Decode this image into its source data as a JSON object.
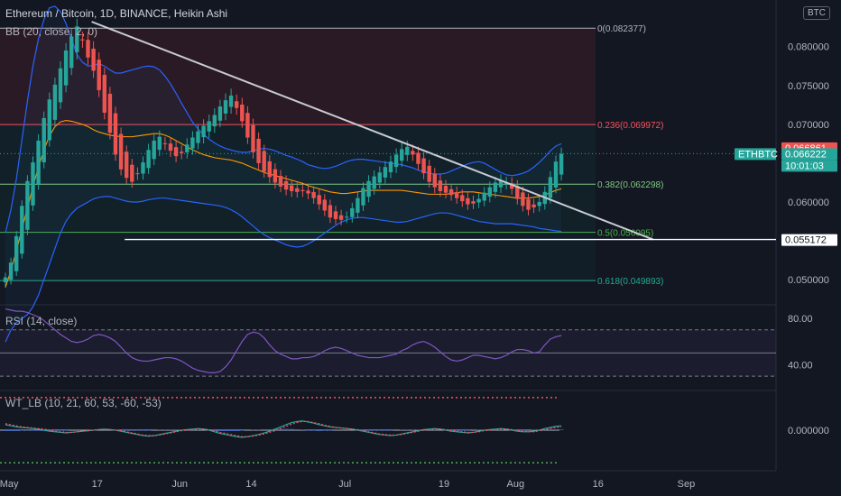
{
  "header": {
    "title": "Ethereum / Bitcoin, 1D, BINANCE, Heikin Ashi",
    "bb_label": "BB (20, close, 2, 0)",
    "rsi_label": "RSI (14, close)",
    "wt_label": "WT_LB (10, 21, 60, 53, -60, -53)",
    "currency": "BTC"
  },
  "colors": {
    "background": "#131722",
    "up": "#26a69a",
    "down": "#ef5350",
    "bb": "#2962ff",
    "basis": "#ff9800",
    "rsi": "#7e57c2",
    "trendline": "#c9cbd1",
    "fib_red": "#f7525f",
    "fib_green": "#4caf50",
    "fib_teal": "#22ab94"
  },
  "chart_data": {
    "type": "candlestick",
    "symbol": "ETHBTC",
    "ylim": [
      0.047,
      0.086
    ],
    "y_ticks": [
      "0.080000",
      "0.075000",
      "0.070000",
      "0.060000",
      "0.050000"
    ],
    "x_ticks": [
      "May",
      "17",
      "Jun",
      "14",
      "Jul",
      "19",
      "Aug",
      "16",
      "Sep"
    ],
    "x_tick_dates": [
      "2021-05-01",
      "2021-05-17",
      "2021-06-01",
      "2021-06-14",
      "2021-07-01",
      "2021-07-19",
      "2021-08-01",
      "2021-08-16",
      "2021-09-01"
    ],
    "closes": [
      0.0503,
      0.0522,
      0.0556,
      0.0595,
      0.0627,
      0.0651,
      0.0679,
      0.0708,
      0.0732,
      0.0751,
      0.0772,
      0.0795,
      0.0813,
      0.0826,
      0.0808,
      0.0786,
      0.0769,
      0.0744,
      0.0715,
      0.0689,
      0.0661,
      0.0642,
      0.0631,
      0.0626,
      0.0636,
      0.0651,
      0.0667,
      0.0679,
      0.0684,
      0.0675,
      0.0666,
      0.0659,
      0.0663,
      0.0674,
      0.0683,
      0.0691,
      0.0698,
      0.0704,
      0.0712,
      0.0723,
      0.0731,
      0.0737,
      0.0721,
      0.0704,
      0.0683,
      0.0664,
      0.065,
      0.0639,
      0.0632,
      0.0625,
      0.062,
      0.0616,
      0.0614,
      0.0613,
      0.0614,
      0.0611,
      0.0605,
      0.0597,
      0.0589,
      0.058,
      0.0578,
      0.0577,
      0.0581,
      0.0592,
      0.0605,
      0.0618,
      0.0627,
      0.0633,
      0.0638,
      0.0645,
      0.0652,
      0.0661,
      0.0668,
      0.0671,
      0.0661,
      0.0649,
      0.0637,
      0.0626,
      0.0619,
      0.0614,
      0.0612,
      0.0609,
      0.0605,
      0.0601,
      0.0597,
      0.0598,
      0.0604,
      0.0612,
      0.0619,
      0.0625,
      0.0628,
      0.0625,
      0.0617,
      0.0604,
      0.0595,
      0.059,
      0.0593,
      0.06,
      0.0613,
      0.0632,
      0.0652,
      0.0662
    ],
    "bb_upper": [
      0.056,
      0.059,
      0.063,
      0.068,
      0.073,
      0.0775,
      0.081,
      0.0835,
      0.085,
      0.0852,
      0.0845,
      0.083,
      0.081,
      0.079,
      0.078,
      0.0775,
      0.0776,
      0.0778,
      0.0775,
      0.077,
      0.0766,
      0.0766,
      0.0768,
      0.077,
      0.0772,
      0.0774,
      0.0775,
      0.0774,
      0.077,
      0.0762,
      0.0752,
      0.074,
      0.0727,
      0.0715,
      0.0703,
      0.0694,
      0.0687,
      0.0681,
      0.0676,
      0.0672,
      0.0669,
      0.0667,
      0.0665,
      0.0664,
      0.0664,
      0.0666,
      0.0668,
      0.0669,
      0.0668,
      0.0666,
      0.0663,
      0.066,
      0.0658,
      0.0655,
      0.0652,
      0.0648,
      0.0646,
      0.0644,
      0.0643,
      0.0644,
      0.0646,
      0.0649,
      0.0652,
      0.0654,
      0.0655,
      0.0655,
      0.0654,
      0.0653,
      0.0652,
      0.0651,
      0.065,
      0.0649,
      0.0648,
      0.0646,
      0.0644,
      0.0641,
      0.0639,
      0.0637,
      0.0636,
      0.0636,
      0.0637,
      0.064,
      0.0643,
      0.0646,
      0.0649,
      0.0651,
      0.0652,
      0.065,
      0.0646,
      0.0642,
      0.0638,
      0.0635,
      0.0634,
      0.0635,
      0.0637,
      0.064,
      0.0645,
      0.0651,
      0.0658,
      0.0666,
      0.0672,
      0.0675
    ],
    "bb_lower": [
      0.042,
      0.0435,
      0.0445,
      0.045,
      0.0455,
      0.0465,
      0.048,
      0.05,
      0.052,
      0.054,
      0.056,
      0.0575,
      0.0585,
      0.0592,
      0.0596,
      0.06,
      0.0604,
      0.0606,
      0.0607,
      0.0607,
      0.0605,
      0.0603,
      0.0601,
      0.06,
      0.06,
      0.0601,
      0.0603,
      0.0604,
      0.0605,
      0.0605,
      0.0604,
      0.0603,
      0.0602,
      0.0601,
      0.06,
      0.0599,
      0.0598,
      0.0597,
      0.0596,
      0.0595,
      0.0593,
      0.059,
      0.0586,
      0.0581,
      0.0575,
      0.0569,
      0.0563,
      0.0558,
      0.0554,
      0.0551,
      0.0548,
      0.0545,
      0.0543,
      0.0542,
      0.0543,
      0.0546,
      0.055,
      0.0555,
      0.056,
      0.0565,
      0.057,
      0.0574,
      0.0577,
      0.0579,
      0.058,
      0.058,
      0.0579,
      0.0578,
      0.0577,
      0.0576,
      0.0575,
      0.0574,
      0.0574,
      0.0575,
      0.0577,
      0.0579,
      0.0581,
      0.0583,
      0.0585,
      0.0586,
      0.0586,
      0.0585,
      0.0583,
      0.0581,
      0.0579,
      0.0577,
      0.0575,
      0.0574,
      0.0573,
      0.0572,
      0.0572,
      0.0572,
      0.0572,
      0.0571,
      0.057,
      0.0569,
      0.0568,
      0.0566,
      0.0565,
      0.0564,
      0.0563,
      0.0562
    ],
    "bb_basis": [
      0.049,
      0.0512,
      0.0537,
      0.0565,
      0.0592,
      0.062,
      0.0645,
      0.0667,
      0.0685,
      0.0697,
      0.0703,
      0.0705,
      0.0704,
      0.0702,
      0.07,
      0.0697,
      0.0693,
      0.069,
      0.0688,
      0.0686,
      0.0685,
      0.0684,
      0.0684,
      0.0684,
      0.0685,
      0.0686,
      0.0687,
      0.0688,
      0.0688,
      0.0686,
      0.0683,
      0.0679,
      0.0675,
      0.0671,
      0.0667,
      0.0664,
      0.0661,
      0.0659,
      0.0657,
      0.0656,
      0.0655,
      0.0654,
      0.0652,
      0.065,
      0.0647,
      0.0644,
      0.0641,
      0.0638,
      0.0636,
      0.0634,
      0.0632,
      0.063,
      0.0628,
      0.0626,
      0.0624,
      0.0621,
      0.0619,
      0.0617,
      0.0615,
      0.0613,
      0.0612,
      0.0611,
      0.0611,
      0.0612,
      0.0613,
      0.0614,
      0.0615,
      0.0615,
      0.0615,
      0.0615,
      0.0615,
      0.0615,
      0.0615,
      0.0614,
      0.0613,
      0.0612,
      0.0611,
      0.061,
      0.061,
      0.061,
      0.061,
      0.0611,
      0.0612,
      0.0613,
      0.0613,
      0.0613,
      0.0612,
      0.0611,
      0.061,
      0.0609,
      0.0608,
      0.0607,
      0.0606,
      0.0605,
      0.0605,
      0.0605,
      0.0606,
      0.0607,
      0.0609,
      0.0612,
      0.0615,
      0.0617
    ],
    "rsi_ylim": [
      20,
      90
    ],
    "rsi_ticks": [
      "80.00",
      "40.00"
    ],
    "rsi_values": [
      88,
      87,
      86,
      86,
      85,
      83,
      81,
      78,
      74,
      70,
      66,
      63,
      60,
      59,
      60,
      62,
      65,
      66,
      65,
      63,
      60,
      55,
      50,
      46,
      44,
      43,
      43,
      44,
      45,
      46,
      46,
      45,
      43,
      40,
      37,
      35,
      34,
      33,
      33,
      34,
      38,
      44,
      52,
      60,
      66,
      68,
      67,
      63,
      57,
      52,
      49,
      47,
      45,
      45,
      46,
      46,
      47,
      49,
      52,
      54,
      55,
      54,
      52,
      50,
      48,
      47,
      46,
      46,
      46,
      47,
      48,
      49,
      52,
      54,
      57,
      59,
      60,
      58,
      55,
      51,
      47,
      44,
      43,
      44,
      46,
      48,
      48,
      47,
      46,
      45,
      46,
      48,
      51,
      53,
      53,
      52,
      50,
      51,
      57,
      62,
      64,
      65
    ],
    "wt_ylim": [
      -68,
      68
    ],
    "wt_ticks": [
      "0.000000"
    ],
    "wt1": [
      10,
      8,
      6,
      5,
      4,
      3,
      2,
      0,
      -2,
      -3,
      -4,
      -5,
      -4,
      -3,
      -2,
      -1,
      0,
      1,
      2,
      1,
      0,
      -2,
      -4,
      -6,
      -8,
      -10,
      -11,
      -10,
      -8,
      -6,
      -4,
      -2,
      0,
      1,
      2,
      3,
      2,
      0,
      -3,
      -6,
      -8,
      -10,
      -12,
      -13,
      -12,
      -10,
      -8,
      -5,
      -2,
      2,
      6,
      10,
      14,
      16,
      17,
      15,
      13,
      10,
      8,
      6,
      5,
      4,
      3,
      2,
      0,
      -2,
      -4,
      -6,
      -8,
      -9,
      -10,
      -9,
      -7,
      -5,
      -3,
      -1,
      1,
      2,
      3,
      2,
      0,
      -2,
      -3,
      -4,
      -5,
      -4,
      -2,
      0,
      1,
      2,
      3,
      2,
      0,
      -2,
      -3,
      -3,
      -2,
      0,
      3,
      5,
      7,
      8
    ],
    "wt2": [
      12,
      10,
      8,
      6,
      5,
      4,
      3,
      2,
      0,
      -2,
      -3,
      -4,
      -4,
      -3,
      -2,
      -1,
      0,
      1,
      1,
      1,
      0,
      -1,
      -3,
      -5,
      -7,
      -9,
      -10,
      -10,
      -9,
      -7,
      -5,
      -3,
      -1,
      0,
      1,
      2,
      2,
      1,
      -1,
      -4,
      -6,
      -8,
      -10,
      -12,
      -12,
      -11,
      -9,
      -7,
      -4,
      -1,
      3,
      7,
      11,
      14,
      16,
      16,
      14,
      12,
      9,
      7,
      5,
      4,
      3,
      2,
      1,
      -1,
      -3,
      -5,
      -7,
      -8,
      -9,
      -9,
      -8,
      -6,
      -4,
      -2,
      0,
      1,
      2,
      2,
      1,
      -1,
      -2,
      -3,
      -4,
      -4,
      -3,
      -1,
      0,
      1,
      2,
      2,
      1,
      -1,
      -2,
      -3,
      -3,
      -1,
      1,
      3,
      5,
      6
    ],
    "wt_levels": [
      60,
      53,
      -60,
      -53
    ],
    "trendline": {
      "from": [
        "2021-05-16",
        0.0832
      ],
      "to": [
        "2021-08-26",
        0.05517
      ]
    },
    "support_line": {
      "from": [
        "2021-05-22",
        0.05517
      ],
      "to": [
        "2021-08-26",
        0.05517
      ]
    },
    "fib_levels": [
      {
        "ratio": 0,
        "price": 0.082377,
        "label": "0(0.082377)",
        "color": "#b2b5be"
      },
      {
        "ratio": 0.236,
        "price": 0.069972,
        "label": "0.236(0.069972)",
        "color": "#f7525f"
      },
      {
        "ratio": 0.382,
        "price": 0.062298,
        "label": "0.382(0.062298)",
        "color": "#81c784"
      },
      {
        "ratio": 0.5,
        "price": 0.056095,
        "label": "0.5(0.056095)",
        "color": "#4caf50"
      },
      {
        "ratio": 0.618,
        "price": 0.049893,
        "label": "0.618(0.049893)",
        "color": "#22ab94"
      }
    ],
    "price_tags": [
      {
        "text": "0.066861",
        "price": 0.066861,
        "bg": "#ef5350",
        "fg": "#ffffff"
      },
      {
        "text": "ETHBTC",
        "price": 0.06622,
        "bg": "#26a69a",
        "fg": "#ffffff",
        "side": "left"
      },
      {
        "text": "0.066222",
        "price": 0.066222,
        "bg": "#26a69a",
        "fg": "#ffffff"
      },
      {
        "text": "10:01:03",
        "price": 0.06622,
        "bg": "#26a69a",
        "fg": "#ffffff",
        "sub": true
      },
      {
        "text": "0.055172",
        "price": 0.055172,
        "bg": "#ffffff",
        "fg": "#131722"
      }
    ]
  }
}
